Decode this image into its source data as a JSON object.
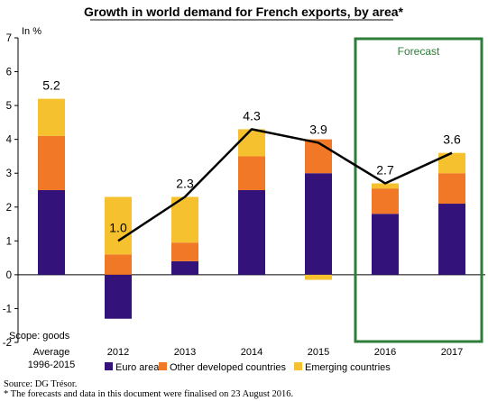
{
  "chart_data": {
    "type": "bar",
    "stacked": true,
    "title": "Growth in world demand for French exports, by area*",
    "ylabel": "In %",
    "ylim": [
      -2,
      7
    ],
    "yticks": [
      "7",
      "6",
      "5",
      "4",
      "3",
      "2",
      "1",
      "0",
      "-1",
      "-2"
    ],
    "categories": [
      "Average 1996-2015",
      "2012",
      "2013",
      "2014",
      "2015",
      "2016",
      "2017"
    ],
    "category_lines": [
      [
        "Average",
        "1996-2015"
      ],
      [
        "2012"
      ],
      [
        "2013"
      ],
      [
        "2014"
      ],
      [
        "2015"
      ],
      [
        "2016"
      ],
      [
        "2017"
      ]
    ],
    "series": [
      {
        "name": "Euro area",
        "color": "#33137a",
        "values": [
          2.5,
          -1.3,
          0.4,
          2.5,
          3.0,
          1.8,
          2.1
        ]
      },
      {
        "name": "Other developed countries",
        "color": "#f07826",
        "values": [
          1.6,
          0.6,
          0.55,
          1.0,
          1.0,
          0.75,
          0.9
        ]
      },
      {
        "name": "Emerging countries",
        "color": "#f5c12e",
        "values": [
          1.1,
          1.7,
          1.35,
          0.8,
          -0.15,
          0.15,
          0.6
        ]
      }
    ],
    "total_line": {
      "values": [
        null,
        1.0,
        2.3,
        4.3,
        3.9,
        2.7,
        3.6
      ],
      "color": "#000000"
    },
    "data_labels": [
      "5.2",
      "1.0",
      "2.3",
      "4.3",
      "3.9",
      "2.7",
      "3.6"
    ],
    "forecast": {
      "label": "Forecast",
      "categories": [
        "2016",
        "2017"
      ],
      "color": "#2e7d3a"
    },
    "annotation": "Scope: goods",
    "grid": false,
    "legend_position": "bottom"
  },
  "footnote": {
    "source": "Source: DG Trésor.",
    "note": "* The forecasts and data in this document were finalised on 23 August 2016."
  }
}
